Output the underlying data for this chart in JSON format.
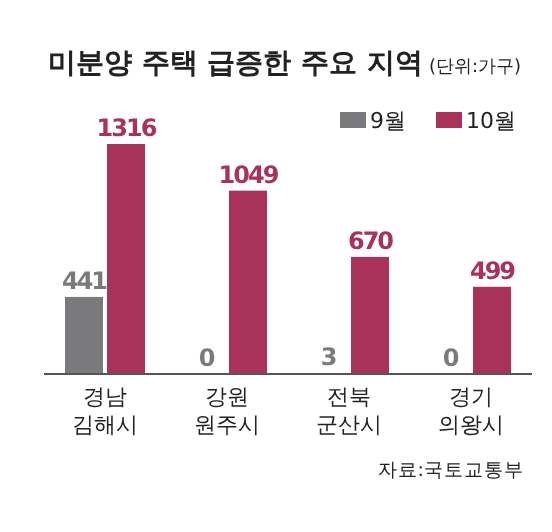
{
  "chart_data": {
    "type": "bar",
    "title": "미분양 주택 급증한 주요 지역",
    "subtitle": "(단위:가구)",
    "categories": [
      "경남\n김해시",
      "강원\n원주시",
      "전북\n군산시",
      "경기\n의왕시"
    ],
    "series": [
      {
        "name": "9월",
        "color": "#7a7a7c",
        "values": [
          441,
          0,
          3,
          0
        ]
      },
      {
        "name": "10월",
        "color": "#a8325a",
        "values": [
          1316,
          1049,
          670,
          499
        ]
      }
    ],
    "data_labels": true,
    "legend": "top right",
    "annotations": [
      "자료:국토교통부"
    ]
  }
}
